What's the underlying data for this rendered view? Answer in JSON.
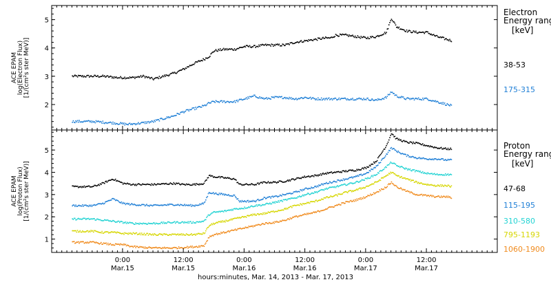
{
  "x_axis": {
    "title": "hours:minutes, Mar. 14, 2013 - Mar. 17, 2013",
    "ticks": [
      {
        "t": 10,
        "time": "0:00",
        "date": "Mar.15"
      },
      {
        "t": 22,
        "time": "12:00",
        "date": "Mar.15"
      },
      {
        "t": 34,
        "time": "0:00",
        "date": "Mar.16"
      },
      {
        "t": 46,
        "time": "12:00",
        "date": "Mar.16"
      },
      {
        "t": 58,
        "time": "0:00",
        "date": "Mar.17"
      },
      {
        "t": 70,
        "time": "12:00",
        "date": "Mar.17"
      }
    ]
  },
  "chart_data": [
    {
      "type": "scatter",
      "panel": "electron",
      "ylabel": [
        "ACE EPAM",
        "log(Electron Flux)",
        "[1/(cm²s ster MeV)]"
      ],
      "ylim": [
        1.1,
        5.5
      ],
      "yticks": [
        2,
        3,
        4,
        5
      ],
      "legend_title": [
        "Electron",
        "Energy ranges",
        "[keV]"
      ],
      "series": [
        {
          "name": "38-53",
          "color": "#000000",
          "points": [
            [
              0,
              3.0
            ],
            [
              6,
              3.0
            ],
            [
              9,
              2.95
            ],
            [
              12,
              2.95
            ],
            [
              14,
              3.0
            ],
            [
              16,
              2.9
            ],
            [
              18,
              3.0
            ],
            [
              20,
              3.1
            ],
            [
              22,
              3.25
            ],
            [
              24,
              3.45
            ],
            [
              26,
              3.6
            ],
            [
              27,
              3.7
            ],
            [
              28,
              3.9
            ],
            [
              30,
              3.95
            ],
            [
              32,
              3.95
            ],
            [
              34,
              4.05
            ],
            [
              36,
              4.05
            ],
            [
              38,
              4.1
            ],
            [
              40,
              4.1
            ],
            [
              42,
              4.1
            ],
            [
              44,
              4.2
            ],
            [
              46,
              4.25
            ],
            [
              48,
              4.3
            ],
            [
              50,
              4.35
            ],
            [
              51,
              4.35
            ],
            [
              52,
              4.45
            ],
            [
              54,
              4.45
            ],
            [
              56,
              4.4
            ],
            [
              58,
              4.35
            ],
            [
              60,
              4.4
            ],
            [
              62,
              4.55
            ],
            [
              63,
              5.05
            ],
            [
              64,
              4.75
            ],
            [
              66,
              4.6
            ],
            [
              68,
              4.55
            ],
            [
              70,
              4.55
            ],
            [
              72,
              4.4
            ],
            [
              74,
              4.3
            ],
            [
              75,
              4.25
            ]
          ]
        },
        {
          "name": "175-315",
          "color": "#1f7fd6",
          "points": [
            [
              0,
              1.4
            ],
            [
              4,
              1.4
            ],
            [
              8,
              1.35
            ],
            [
              11,
              1.3
            ],
            [
              14,
              1.35
            ],
            [
              16,
              1.4
            ],
            [
              18,
              1.5
            ],
            [
              20,
              1.6
            ],
            [
              22,
              1.75
            ],
            [
              24,
              1.85
            ],
            [
              26,
              1.95
            ],
            [
              27,
              2.05
            ],
            [
              28,
              2.1
            ],
            [
              30,
              2.1
            ],
            [
              32,
              2.1
            ],
            [
              34,
              2.2
            ],
            [
              36,
              2.3
            ],
            [
              38,
              2.2
            ],
            [
              40,
              2.25
            ],
            [
              42,
              2.25
            ],
            [
              44,
              2.2
            ],
            [
              46,
              2.25
            ],
            [
              48,
              2.2
            ],
            [
              50,
              2.2
            ],
            [
              52,
              2.2
            ],
            [
              54,
              2.2
            ],
            [
              56,
              2.2
            ],
            [
              58,
              2.2
            ],
            [
              60,
              2.15
            ],
            [
              62,
              2.25
            ],
            [
              63,
              2.45
            ],
            [
              64,
              2.3
            ],
            [
              66,
              2.2
            ],
            [
              68,
              2.2
            ],
            [
              70,
              2.2
            ],
            [
              72,
              2.1
            ],
            [
              74,
              2.0
            ],
            [
              75,
              1.95
            ]
          ]
        }
      ]
    },
    {
      "type": "scatter",
      "panel": "proton",
      "ylabel": [
        "ACE EPAM",
        "log(Proton Flux)",
        "[1/(cm²s ster MeV)]"
      ],
      "ylim": [
        0.4,
        5.9
      ],
      "yticks": [
        1,
        2,
        3,
        4,
        5
      ],
      "legend_title": [
        "Proton",
        "Energy ranges",
        "[keV]"
      ],
      "series": [
        {
          "name": "47-68",
          "color": "#000000",
          "points": [
            [
              0,
              3.35
            ],
            [
              4,
              3.35
            ],
            [
              6,
              3.5
            ],
            [
              8,
              3.7
            ],
            [
              10,
              3.5
            ],
            [
              12,
              3.45
            ],
            [
              16,
              3.45
            ],
            [
              20,
              3.5
            ],
            [
              22,
              3.45
            ],
            [
              24,
              3.45
            ],
            [
              26,
              3.5
            ],
            [
              27,
              3.85
            ],
            [
              28,
              3.8
            ],
            [
              30,
              3.75
            ],
            [
              32,
              3.7
            ],
            [
              33,
              3.45
            ],
            [
              36,
              3.45
            ],
            [
              38,
              3.55
            ],
            [
              40,
              3.55
            ],
            [
              42,
              3.6
            ],
            [
              44,
              3.7
            ],
            [
              46,
              3.8
            ],
            [
              48,
              3.85
            ],
            [
              50,
              3.95
            ],
            [
              52,
              4.0
            ],
            [
              54,
              4.05
            ],
            [
              56,
              4.1
            ],
            [
              58,
              4.2
            ],
            [
              60,
              4.5
            ],
            [
              62,
              5.2
            ],
            [
              63,
              5.75
            ],
            [
              64,
              5.5
            ],
            [
              66,
              5.35
            ],
            [
              68,
              5.3
            ],
            [
              70,
              5.2
            ],
            [
              72,
              5.1
            ],
            [
              74,
              5.05
            ],
            [
              75,
              5.05
            ]
          ]
        },
        {
          "name": "115-195",
          "color": "#1f7fd6",
          "points": [
            [
              0,
              2.5
            ],
            [
              4,
              2.5
            ],
            [
              6,
              2.6
            ],
            [
              8,
              2.8
            ],
            [
              10,
              2.6
            ],
            [
              12,
              2.55
            ],
            [
              16,
              2.5
            ],
            [
              20,
              2.55
            ],
            [
              24,
              2.5
            ],
            [
              26,
              2.6
            ],
            [
              27,
              3.1
            ],
            [
              28,
              3.05
            ],
            [
              30,
              3.0
            ],
            [
              32,
              2.95
            ],
            [
              33,
              2.7
            ],
            [
              36,
              2.7
            ],
            [
              38,
              2.85
            ],
            [
              40,
              2.9
            ],
            [
              42,
              3.0
            ],
            [
              44,
              3.1
            ],
            [
              46,
              3.25
            ],
            [
              48,
              3.35
            ],
            [
              50,
              3.5
            ],
            [
              52,
              3.6
            ],
            [
              54,
              3.7
            ],
            [
              56,
              3.8
            ],
            [
              58,
              3.95
            ],
            [
              60,
              4.25
            ],
            [
              62,
              4.8
            ],
            [
              63,
              5.1
            ],
            [
              64,
              4.95
            ],
            [
              66,
              4.75
            ],
            [
              68,
              4.65
            ],
            [
              70,
              4.6
            ],
            [
              72,
              4.6
            ],
            [
              74,
              4.55
            ],
            [
              75,
              4.55
            ]
          ]
        },
        {
          "name": "310-580",
          "color": "#22d3d3",
          "points": [
            [
              0,
              1.9
            ],
            [
              4,
              1.9
            ],
            [
              6,
              1.85
            ],
            [
              8,
              1.8
            ],
            [
              10,
              1.75
            ],
            [
              12,
              1.7
            ],
            [
              16,
              1.7
            ],
            [
              20,
              1.75
            ],
            [
              24,
              1.75
            ],
            [
              26,
              1.8
            ],
            [
              27,
              2.1
            ],
            [
              28,
              2.2
            ],
            [
              30,
              2.25
            ],
            [
              32,
              2.35
            ],
            [
              34,
              2.4
            ],
            [
              36,
              2.5
            ],
            [
              38,
              2.55
            ],
            [
              40,
              2.65
            ],
            [
              42,
              2.75
            ],
            [
              44,
              2.85
            ],
            [
              46,
              3.0
            ],
            [
              48,
              3.1
            ],
            [
              50,
              3.25
            ],
            [
              52,
              3.35
            ],
            [
              54,
              3.45
            ],
            [
              56,
              3.55
            ],
            [
              58,
              3.7
            ],
            [
              60,
              3.9
            ],
            [
              62,
              4.25
            ],
            [
              63,
              4.45
            ],
            [
              64,
              4.3
            ],
            [
              66,
              4.15
            ],
            [
              68,
              4.05
            ],
            [
              70,
              3.95
            ],
            [
              72,
              3.9
            ],
            [
              74,
              3.9
            ],
            [
              75,
              3.9
            ]
          ]
        },
        {
          "name": "795-1193",
          "color": "#d6d600",
          "points": [
            [
              0,
              1.35
            ],
            [
              4,
              1.35
            ],
            [
              6,
              1.3
            ],
            [
              8,
              1.3
            ],
            [
              10,
              1.25
            ],
            [
              12,
              1.25
            ],
            [
              16,
              1.2
            ],
            [
              20,
              1.2
            ],
            [
              24,
              1.2
            ],
            [
              26,
              1.25
            ],
            [
              27,
              1.6
            ],
            [
              28,
              1.7
            ],
            [
              30,
              1.8
            ],
            [
              32,
              1.9
            ],
            [
              34,
              2.0
            ],
            [
              36,
              2.1
            ],
            [
              38,
              2.15
            ],
            [
              40,
              2.25
            ],
            [
              42,
              2.35
            ],
            [
              44,
              2.5
            ],
            [
              46,
              2.6
            ],
            [
              48,
              2.7
            ],
            [
              50,
              2.85
            ],
            [
              52,
              2.95
            ],
            [
              54,
              3.1
            ],
            [
              56,
              3.2
            ],
            [
              58,
              3.35
            ],
            [
              60,
              3.55
            ],
            [
              62,
              3.85
            ],
            [
              63,
              4.0
            ],
            [
              64,
              3.85
            ],
            [
              66,
              3.7
            ],
            [
              68,
              3.55
            ],
            [
              70,
              3.45
            ],
            [
              72,
              3.4
            ],
            [
              74,
              3.4
            ],
            [
              75,
              3.35
            ]
          ]
        },
        {
          "name": "1060-1900",
          "color": "#f08a1c",
          "points": [
            [
              0,
              0.85
            ],
            [
              4,
              0.85
            ],
            [
              6,
              0.8
            ],
            [
              8,
              0.75
            ],
            [
              10,
              0.75
            ],
            [
              12,
              0.65
            ],
            [
              16,
              0.6
            ],
            [
              20,
              0.6
            ],
            [
              24,
              0.65
            ],
            [
              26,
              0.7
            ],
            [
              27,
              1.1
            ],
            [
              28,
              1.2
            ],
            [
              30,
              1.3
            ],
            [
              32,
              1.4
            ],
            [
              34,
              1.5
            ],
            [
              36,
              1.6
            ],
            [
              38,
              1.7
            ],
            [
              40,
              1.75
            ],
            [
              42,
              1.85
            ],
            [
              44,
              2.0
            ],
            [
              46,
              2.1
            ],
            [
              48,
              2.2
            ],
            [
              50,
              2.35
            ],
            [
              52,
              2.5
            ],
            [
              54,
              2.65
            ],
            [
              56,
              2.75
            ],
            [
              58,
              2.9
            ],
            [
              60,
              3.1
            ],
            [
              62,
              3.35
            ],
            [
              63,
              3.55
            ],
            [
              64,
              3.35
            ],
            [
              66,
              3.15
            ],
            [
              68,
              3.0
            ],
            [
              70,
              2.95
            ],
            [
              72,
              2.9
            ],
            [
              74,
              2.9
            ],
            [
              75,
              2.85
            ]
          ]
        }
      ]
    }
  ]
}
